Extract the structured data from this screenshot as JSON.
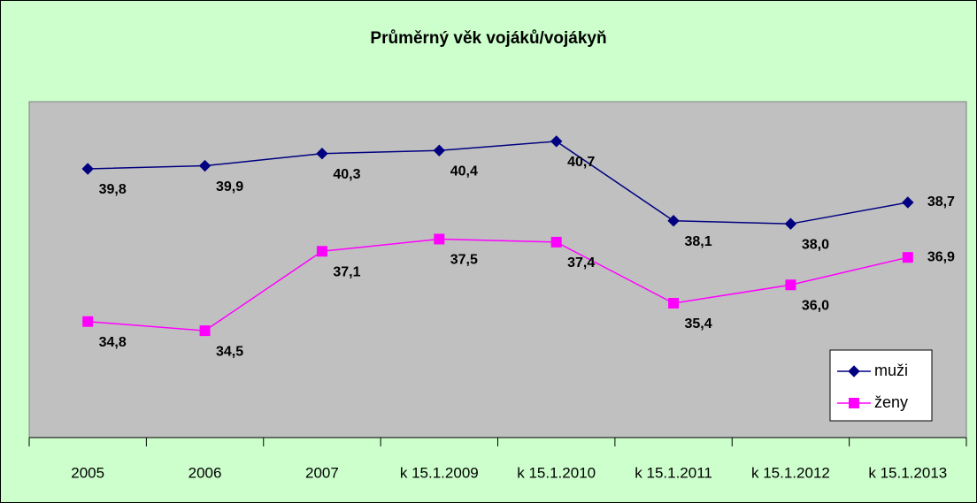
{
  "chart_data": {
    "type": "line",
    "title": "Průměrný věk vojáků/vojákyň",
    "categories": [
      "2005",
      "2006",
      "2007",
      "k 15.1.2009",
      "k 15.1.2010",
      "k 15.1.2011",
      "k 15.1.2012",
      "k 15.1.2013"
    ],
    "series": [
      {
        "name": "muži",
        "color": "#000080",
        "marker": "diamond",
        "values": [
          39.8,
          39.9,
          40.3,
          40.4,
          40.7,
          38.1,
          38.0,
          38.7
        ],
        "value_labels": [
          "39,8",
          "39,9",
          "40,3",
          "40,4",
          "40,7",
          "38,1",
          "38,0",
          "38,7"
        ]
      },
      {
        "name": "ženy",
        "color": "#ff00ff",
        "marker": "square",
        "values": [
          34.8,
          34.5,
          37.1,
          37.5,
          37.4,
          35.4,
          36.0,
          36.9
        ],
        "value_labels": [
          "34,8",
          "34,5",
          "37,1",
          "37,5",
          "37,4",
          "35,4",
          "36,0",
          "36,9"
        ]
      }
    ],
    "ylim": [
      31,
      42
    ],
    "legend": "bottom-right"
  }
}
